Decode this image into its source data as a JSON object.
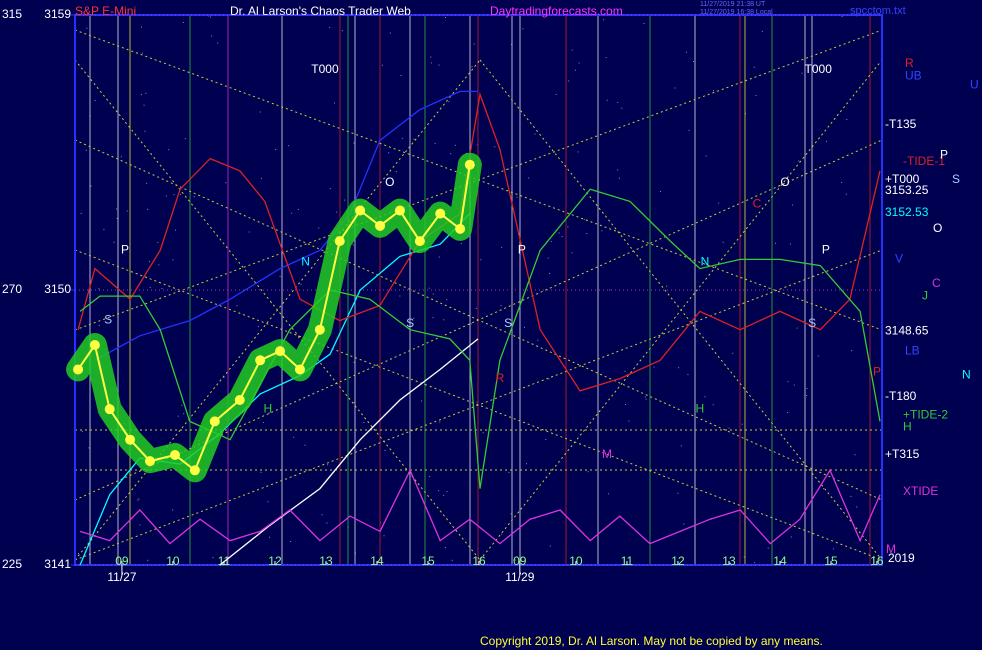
{
  "chart_data": {
    "type": "line",
    "title": "Dr. Al Larson's Chaos Trader Web",
    "subtitle": "S&P E-Mini",
    "url": "Daytradingforecasts.com",
    "timestamps": [
      "11/27/2019 21:38 UT",
      "11/27/2019 16:38 Local"
    ],
    "source": "spcctom.txt",
    "copyright": "Copyright 2019, Dr. Al Larson. May not be copied by any means.",
    "background": "#000050",
    "xlim": [
      -0.92,
      14.9
    ],
    "ylim": [
      3141,
      3159
    ],
    "yticks": [
      3141,
      3150,
      3159
    ],
    "degree_ticks": [
      225,
      270,
      315
    ],
    "xticks": [
      {
        "value": 0,
        "label": "09"
      },
      {
        "value": 1,
        "label": "10"
      },
      {
        "value": 2,
        "label": "11"
      },
      {
        "value": 3,
        "label": "12"
      },
      {
        "value": 4,
        "label": "13"
      },
      {
        "value": 5,
        "label": "14"
      },
      {
        "value": 6,
        "label": "15"
      },
      {
        "value": 7,
        "label": "16"
      },
      {
        "value": 7.8,
        "label": "09"
      },
      {
        "value": 8.9,
        "label": "10"
      },
      {
        "value": 9.9,
        "label": "11"
      },
      {
        "value": 10.9,
        "label": "12"
      },
      {
        "value": 11.9,
        "label": "13"
      },
      {
        "value": 12.9,
        "label": "14"
      },
      {
        "value": 13.9,
        "label": "15"
      },
      {
        "value": 14.8,
        "label": "16"
      }
    ],
    "dates": [
      {
        "value": 0,
        "label": "11/27"
      },
      {
        "value": 7.8,
        "label": "11/29"
      }
    ],
    "series": [
      {
        "color": "#00ffff",
        "x": [
          -0.82,
          -0.24,
          0.35,
          1.14,
          1.92,
          2.71,
          3.49,
          4.08,
          4.67,
          5.45,
          6.24,
          6.82
        ],
        "values": [
          3141.0,
          3143.3,
          3144.5,
          3144.3,
          3145.3,
          3146.6,
          3147.2,
          3147.9,
          3150.0,
          3151.1,
          3151.5,
          3152.5
        ]
      },
      {
        "color": "#ffffff",
        "x": [
          1.92,
          2.9,
          3.88,
          4.67,
          5.45,
          6.24,
          6.98
        ],
        "values": [
          3141.0,
          3142.3,
          3143.5,
          3145.1,
          3146.4,
          3147.4,
          3148.4
        ]
      },
      {
        "color": "#2233ff",
        "x": [
          -0.53,
          0.35,
          1.33,
          2.12,
          3.1,
          3.88,
          4.47,
          5.06,
          5.84,
          6.63,
          6.98
        ],
        "values": [
          3147.7,
          3148.5,
          3149.0,
          3149.7,
          3150.7,
          3151.3,
          3152.5,
          3154.9,
          3155.9,
          3156.5,
          3156.5
        ]
      },
      {
        "color": "#dd2222",
        "x": [
          -0.86,
          -0.53,
          0.16,
          0.75,
          1.14,
          1.73,
          2.31,
          2.8,
          3.49,
          4.27,
          5.06,
          5.84,
          6.63,
          7.02,
          7.41,
          8.2,
          8.98,
          9.76,
          10.55,
          11.33,
          12.12,
          12.9,
          13.69,
          14.27,
          14.86
        ],
        "values": [
          3148.7,
          3150.7,
          3149.7,
          3151.3,
          3153.3,
          3154.3,
          3153.9,
          3152.9,
          3149.7,
          3149.0,
          3149.5,
          3151.6,
          3152.5,
          3156.4,
          3154.6,
          3148.7,
          3146.7,
          3147.1,
          3147.7,
          3149.3,
          3148.7,
          3149.3,
          3148.7,
          3149.7,
          3153.9
        ]
      },
      {
        "color": "#33cc33",
        "x": [
          -0.82,
          -0.43,
          0.35,
          0.75,
          1.33,
          2.12,
          3.29,
          4.08,
          4.86,
          5.65,
          6.43,
          6.82,
          7.02,
          7.41,
          8.2,
          9.18,
          9.96,
          10.75,
          11.33,
          12.12,
          12.9,
          13.69,
          14.47,
          14.86
        ],
        "values": [
          3149.3,
          3149.8,
          3149.8,
          3148.7,
          3145.7,
          3145.1,
          3148.7,
          3150.0,
          3149.7,
          3148.7,
          3148.4,
          3147.7,
          3143.5,
          3147.7,
          3151.3,
          3153.3,
          3152.9,
          3151.6,
          3150.7,
          3151.0,
          3151.0,
          3150.8,
          3149.3,
          3145.7
        ]
      },
      {
        "color": "#dd33dd",
        "x": [
          -0.82,
          -0.24,
          0.35,
          0.94,
          1.53,
          2.12,
          2.71,
          3.29,
          3.88,
          4.47,
          5.06,
          5.65,
          6.24,
          6.82,
          7.41,
          8.0,
          8.59,
          9.18,
          9.76,
          10.35,
          10.94,
          11.53,
          12.12,
          12.71,
          13.29,
          13.88,
          14.47,
          14.86
        ],
        "values": [
          3142.1,
          3141.8,
          3142.8,
          3141.7,
          3142.5,
          3141.8,
          3142.1,
          3142.8,
          3141.8,
          3142.6,
          3142.1,
          3144.1,
          3141.8,
          3142.5,
          3141.7,
          3142.5,
          3142.8,
          3141.8,
          3142.6,
          3141.7,
          3142.1,
          3142.5,
          3142.8,
          3141.7,
          3142.5,
          3144.1,
          3141.8,
          3143.3
        ]
      },
      {
        "color": "#ffff44",
        "glow": "#22cc22",
        "x": [
          -0.86,
          -0.53,
          -0.24,
          0.16,
          0.55,
          1.04,
          1.43,
          1.82,
          2.31,
          2.71,
          3.1,
          3.49,
          3.88,
          4.27,
          4.67,
          5.06,
          5.45,
          5.84,
          6.24,
          6.63,
          6.82
        ],
        "values": [
          3147.4,
          3148.2,
          3146.1,
          3145.1,
          3144.4,
          3144.6,
          3144.1,
          3145.7,
          3146.4,
          3147.7,
          3148.0,
          3147.4,
          3148.7,
          3151.6,
          3152.6,
          3152.1,
          3152.6,
          3151.6,
          3152.5,
          3152.0,
          3154.1
        ]
      }
    ],
    "levels": [
      {
        "text": "R",
        "y": 3157.4,
        "color": "#dd2222"
      },
      {
        "text": "UB",
        "y": 3157.0,
        "color": "#3344ff"
      },
      {
        "text": "U",
        "y": 3156.7,
        "color": "#3344ff"
      },
      {
        "text": "-T135",
        "y": 3155.4,
        "color": "#ffffff"
      },
      {
        "text": "-TIDE-1",
        "y": 3154.2,
        "color": "#dd2222"
      },
      {
        "text": "P",
        "y": 3154.4,
        "color": "#ffffff"
      },
      {
        "text": "+T000",
        "y": 3153.6,
        "color": "#ffffff"
      },
      {
        "text": "S",
        "y": 3153.6,
        "color": "#aaccff"
      },
      {
        "text": "3153.25",
        "y": 3153.25,
        "color": "#ffffff"
      },
      {
        "text": "3152.53",
        "y": 3152.53,
        "color": "#00ffff"
      },
      {
        "text": "O",
        "y": 3152.0,
        "color": "#ffffff"
      },
      {
        "text": "V",
        "y": 3151.0,
        "color": "#3344ff"
      },
      {
        "text": "C",
        "y": 3150.2,
        "color": "#dd33dd"
      },
      {
        "text": "J",
        "y": 3149.8,
        "color": "#33cc33"
      },
      {
        "text": "3148.65",
        "y": 3148.65,
        "color": "#ffffff"
      },
      {
        "text": "LB",
        "y": 3148.0,
        "color": "#3344ff"
      },
      {
        "text": "N",
        "y": 3147.2,
        "color": "#00ffff"
      },
      {
        "text": "P",
        "y": 3147.3,
        "color": "#dd2222"
      },
      {
        "text": "-T180",
        "y": 3146.5,
        "color": "#ffffff"
      },
      {
        "text": "+TIDE-2",
        "y": 3145.9,
        "color": "#33cc33"
      },
      {
        "text": "H",
        "y": 3145.5,
        "color": "#33cc33"
      },
      {
        "text": "+T315",
        "y": 3144.6,
        "color": "#ffffff"
      },
      {
        "text": "XTIDE",
        "y": 3143.4,
        "color": "#dd33dd"
      },
      {
        "text": "M",
        "y": 3141.5,
        "color": "#dd33dd"
      },
      {
        "text": "2019",
        "y": 3141.2,
        "color": "#ffffff"
      }
    ],
    "letters": [
      {
        "text": "T000",
        "x": 3.98,
        "y": 3157.2,
        "color": "#ffffff"
      },
      {
        "text": "T000",
        "x": 13.65,
        "y": 3157.2,
        "color": "#ffffff"
      },
      {
        "text": "P",
        "x": 0.06,
        "y": 3151.3,
        "color": "#ffffff"
      },
      {
        "text": "P",
        "x": 7.84,
        "y": 3151.3,
        "color": "#ffffff"
      },
      {
        "text": "P",
        "x": 13.8,
        "y": 3151.3,
        "color": "#ffffff"
      },
      {
        "text": "O",
        "x": 5.25,
        "y": 3153.5,
        "color": "#ffffff"
      },
      {
        "text": "O",
        "x": 13.0,
        "y": 3153.5,
        "color": "#ffffff"
      },
      {
        "text": "S",
        "x": -0.27,
        "y": 3149.0,
        "color": "#aaccff"
      },
      {
        "text": "S",
        "x": 5.65,
        "y": 3148.9,
        "color": "#aaccff"
      },
      {
        "text": "S",
        "x": 7.57,
        "y": 3148.9,
        "color": "#aaccff"
      },
      {
        "text": "S",
        "x": 13.53,
        "y": 3148.9,
        "color": "#aaccff"
      },
      {
        "text": "N",
        "x": 3.6,
        "y": 3150.9,
        "color": "#00ffff"
      },
      {
        "text": "N",
        "x": 11.43,
        "y": 3150.9,
        "color": "#00ffff"
      },
      {
        "text": "H",
        "x": 2.86,
        "y": 3146.1,
        "color": "#33cc33"
      },
      {
        "text": "H",
        "x": 11.33,
        "y": 3146.1,
        "color": "#33cc33"
      },
      {
        "text": "M",
        "x": 9.51,
        "y": 3144.6,
        "color": "#dd33dd"
      },
      {
        "text": "C",
        "x": 12.45,
        "y": 3152.8,
        "color": "#dd2222"
      },
      {
        "text": "R",
        "x": 7.41,
        "y": 3147.1,
        "color": "#dd2222"
      }
    ]
  }
}
